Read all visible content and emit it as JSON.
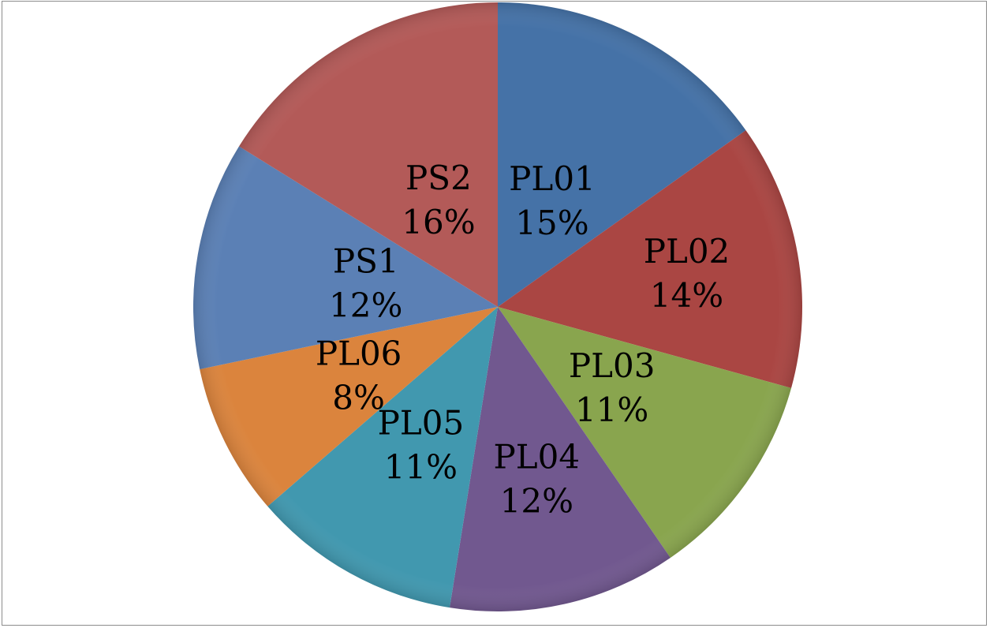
{
  "chart_data": {
    "type": "pie",
    "title": "",
    "categories": [
      "PL01",
      "PL02",
      "PL03",
      "PL04",
      "PL05",
      "PL06",
      "PS1",
      "PS2"
    ],
    "values": [
      15,
      14,
      11,
      12,
      11,
      8,
      12,
      16
    ],
    "value_labels": [
      "15%",
      "14%",
      "11%",
      "12%",
      "11%",
      "8%",
      "12%",
      "16%"
    ],
    "colors": [
      "#4572A7",
      "#AA4643",
      "#89A54E",
      "#71588F",
      "#4198AF",
      "#DB843D",
      "#5B80B5",
      "#B35A58"
    ],
    "legend": "none",
    "start_angle": "top",
    "direction": "clockwise"
  }
}
